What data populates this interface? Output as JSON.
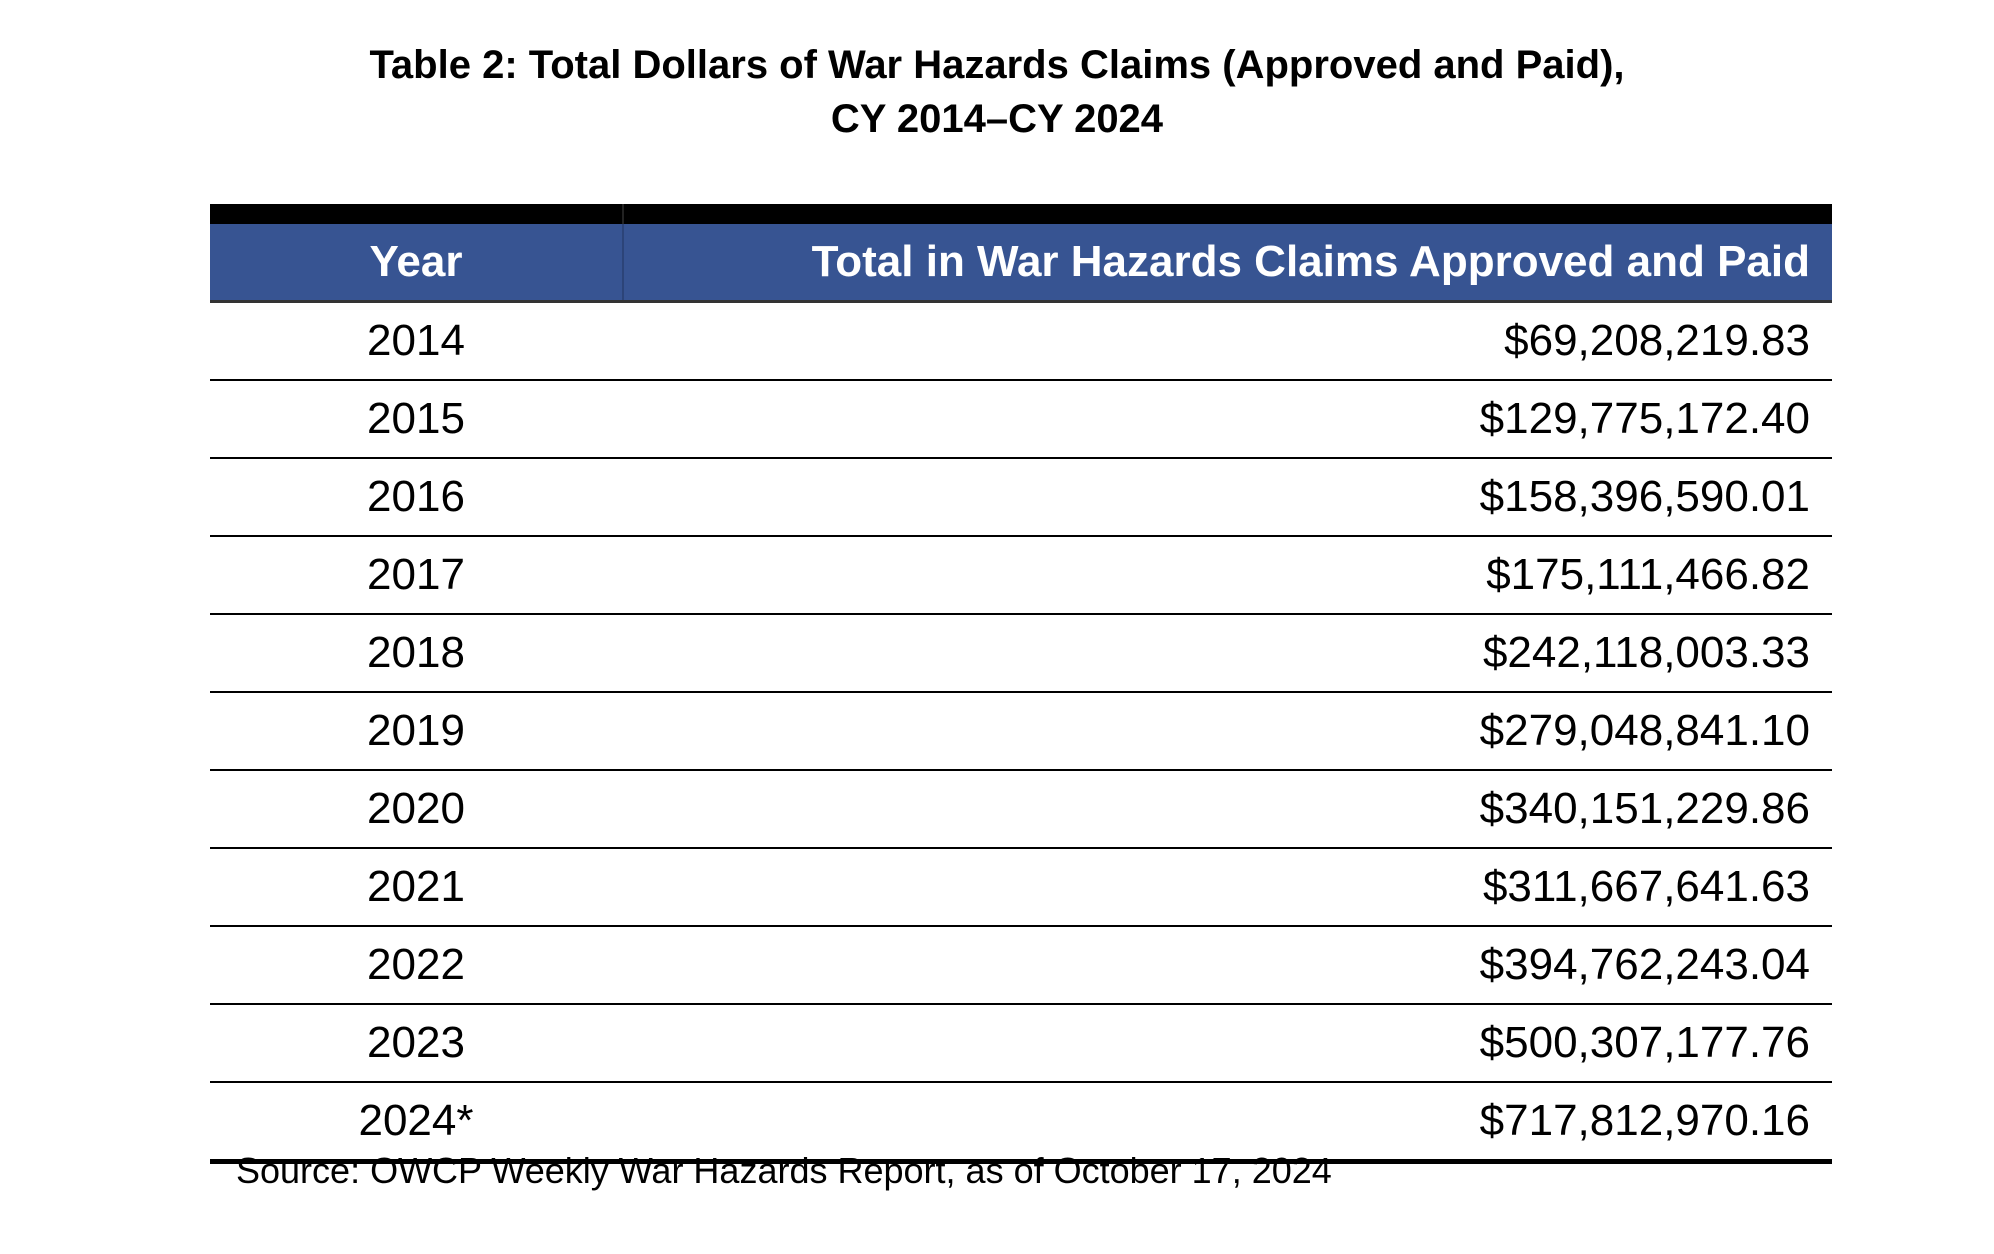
{
  "title": {
    "line1": "Table 2: Total Dollars of War Hazards Claims (Approved and Paid),",
    "line2": "CY 2014–CY 2024"
  },
  "table": {
    "headers": [
      "Year",
      "Total in War Hazards Claims Approved and Paid"
    ],
    "rows": [
      {
        "year": "2014",
        "total": "$69,208,219.83"
      },
      {
        "year": "2015",
        "total": "$129,775,172.40"
      },
      {
        "year": "2016",
        "total": "$158,396,590.01"
      },
      {
        "year": "2017",
        "total": "$175,111,466.82"
      },
      {
        "year": "2018",
        "total": "$242,118,003.33"
      },
      {
        "year": "2019",
        "total": "$279,048,841.10"
      },
      {
        "year": "2020",
        "total": "$340,151,229.86"
      },
      {
        "year": "2021",
        "total": "$311,667,641.63"
      },
      {
        "year": "2022",
        "total": "$394,762,243.04"
      },
      {
        "year": "2023",
        "total": "$500,307,177.76"
      },
      {
        "year": "2024*",
        "total": "$717,812,970.16"
      }
    ]
  },
  "source": "Source: OWCP Weekly War Hazards Report, as of October 17, 2024",
  "colors": {
    "header_bg": "#375492",
    "header_text": "#ffffff"
  }
}
